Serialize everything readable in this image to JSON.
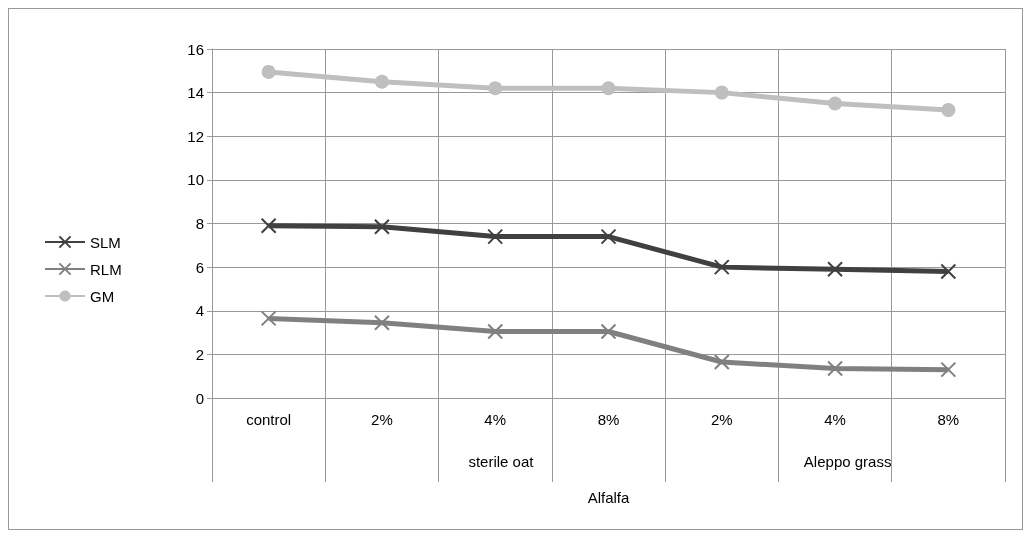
{
  "chart_data": {
    "type": "line",
    "categories": [
      "control",
      "2%",
      "4%",
      "8%",
      "2%",
      "4%",
      "8%"
    ],
    "xlabel": "Alfalfa",
    "annotations": [
      "sterile oat",
      "Aleppo grass"
    ],
    "series": [
      {
        "name": "SLM",
        "color": "#404040",
        "marker": "cross",
        "values": [
          7.9,
          7.85,
          7.4,
          7.4,
          6.0,
          5.9,
          5.8
        ]
      },
      {
        "name": "RLM",
        "color": "#808080",
        "marker": "cross",
        "values": [
          3.65,
          3.45,
          3.05,
          3.05,
          1.65,
          1.35,
          1.3
        ]
      },
      {
        "name": "GM",
        "color": "#bfbfbf",
        "marker": "circle",
        "values": [
          14.95,
          14.5,
          14.2,
          14.2,
          14.0,
          13.5,
          13.2
        ]
      }
    ],
    "ylim": [
      0,
      16
    ],
    "yticks": [
      0,
      2,
      4,
      6,
      8,
      10,
      12,
      14,
      16
    ],
    "grid": true,
    "legend": "left"
  }
}
